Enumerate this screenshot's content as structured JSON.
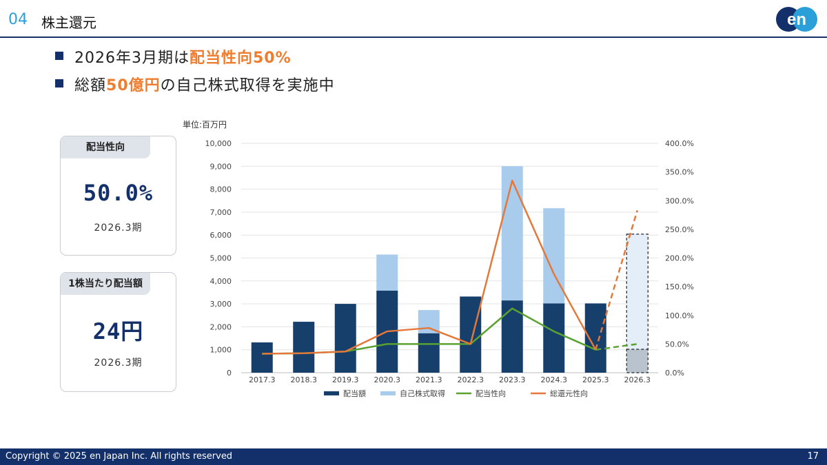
{
  "header": {
    "section_number": "04",
    "section_title": "株主還元"
  },
  "logo": {
    "text": "en"
  },
  "bullets": [
    {
      "prefix": "2026年3月期は",
      "highlight": "配当性向50%",
      "suffix": ""
    },
    {
      "prefix": "総額",
      "highlight": "50億円",
      "suffix": "の自己株式取得を実施中"
    }
  ],
  "cards": [
    {
      "label": "配当性向",
      "value": "50.0%",
      "period": "2026.3期"
    },
    {
      "label": "1株当たり配当額",
      "value": "24円",
      "period": "2026.3期"
    }
  ],
  "chart_unit": "単位:百万円",
  "chart_data": {
    "type": "bar",
    "categories": [
      "2017.3",
      "2018.3",
      "2019.3",
      "2020.3",
      "2021.3",
      "2022.3",
      "2023.3",
      "2024.3",
      "2025.3",
      "2026.3"
    ],
    "series": [
      {
        "name": "配当額",
        "kind": "stacked-bar",
        "axis": "left",
        "color": "#173f6b",
        "values": [
          1320,
          2220,
          3000,
          3580,
          1720,
          3320,
          3150,
          3020,
          3020,
          1020
        ]
      },
      {
        "name": "自己株式取得",
        "kind": "stacked-bar",
        "axis": "left",
        "color": "#a9cbec",
        "values": [
          0,
          0,
          0,
          1570,
          1010,
          0,
          5850,
          4150,
          0,
          5020
        ]
      },
      {
        "name": "配当性向",
        "kind": "line",
        "axis": "right",
        "color": "#59a231",
        "values": [
          33,
          34,
          37,
          50,
          50,
          50,
          112,
          72,
          40,
          50
        ]
      },
      {
        "name": "総還元性向",
        "kind": "line",
        "axis": "right",
        "color": "#e4773a",
        "values": [
          33,
          34,
          37,
          72,
          78,
          50,
          335,
          172,
          40,
          283
        ]
      }
    ],
    "forecast_category": "2026.3",
    "y_left": {
      "min": 0,
      "max": 10000,
      "ticks": [
        "0",
        "1,000",
        "2,000",
        "3,000",
        "4,000",
        "5,000",
        "6,000",
        "7,000",
        "8,000",
        "9,000",
        "10,000"
      ]
    },
    "y_right": {
      "min": 0,
      "max": 400,
      "ticks": [
        "0.0%",
        "50.0%",
        "100.0%",
        "150.0%",
        "200.0%",
        "250.0%",
        "300.0%",
        "350.0%",
        "400.0%"
      ]
    },
    "gridlines": true,
    "legend_position": "bottom"
  },
  "footer": {
    "copyright": "Copyright © 2025 en Japan Inc. All rights reserved",
    "page_number": "17"
  }
}
